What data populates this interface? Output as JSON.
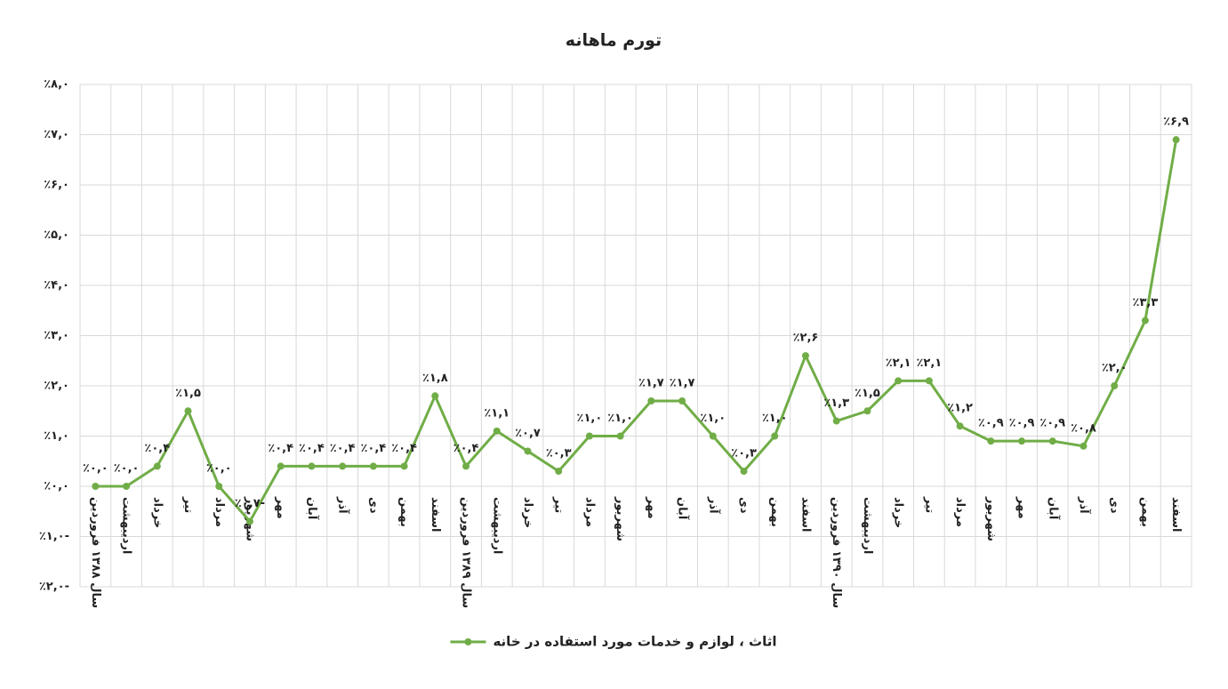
{
  "chart_data": {
    "type": "line",
    "title": "تورم ماهانه",
    "categories": [
      "سال ۱۳۸۸ فروردین",
      "اردیبهشت",
      "خرداد",
      "تیر",
      "مرداد",
      "شهریور",
      "مهر",
      "آبان",
      "آذر",
      "دی",
      "بهمن",
      "اسفند",
      "سال ۱۳۸۹ فروردین",
      "اردیبهشت",
      "خرداد",
      "تیر",
      "مرداد",
      "شهریور",
      "مهر",
      "آبان",
      "آذر",
      "دی",
      "بهمن",
      "اسفند",
      "سال ۱۳۹۰ فروردین",
      "اردیبهشت",
      "خرداد",
      "تیر",
      "مرداد",
      "شهریور",
      "مهر",
      "آبان",
      "آذر",
      "دی",
      "بهمن",
      "اسفند"
    ],
    "series": [
      {
        "name": "اثاث ، لوازم و خدمات مورد استفاده در خانه",
        "color": "#70ad47",
        "values": [
          0.0,
          0.0,
          0.4,
          1.5,
          0.0,
          -0.7,
          0.4,
          0.4,
          0.4,
          0.4,
          0.4,
          1.8,
          0.4,
          1.1,
          0.7,
          0.3,
          1.0,
          1.0,
          1.7,
          1.7,
          1.0,
          0.3,
          1.0,
          2.6,
          1.3,
          1.5,
          2.1,
          2.1,
          1.2,
          0.9,
          0.9,
          0.9,
          0.8,
          2.0,
          3.3,
          6.9
        ],
        "value_labels": [
          "٪۰,۰",
          "٪۰,۰",
          "٪۰,۴",
          "٪۱,۵",
          "٪۰,۰",
          "٪۰,۷-",
          "٪۰,۴",
          "٪۰,۴",
          "٪۰,۴",
          "٪۰,۴",
          "٪۰,۴",
          "٪۱,۸",
          "٪۰,۴",
          "٪۱,۱",
          "٪۰,۷",
          "٪۰,۳",
          "٪۱,۰",
          "٪۱,۰",
          "٪۱,۷",
          "٪۱,۷",
          "٪۱,۰",
          "٪۰,۳",
          "٪۱,۰",
          "٪۲,۶",
          "٪۱,۳",
          "٪۱,۵",
          "٪۲,۱",
          "٪۲,۱",
          "٪۱,۲",
          "٪۰,۹",
          "٪۰,۹",
          "٪۰,۹",
          "٪۰,۸",
          "٪۲,۰",
          "٪۳,۳",
          "٪۶,۹"
        ]
      }
    ],
    "ylim": [
      -2,
      8
    ],
    "yticks": [
      {
        "value": -2,
        "label": "٪۲,۰-"
      },
      {
        "value": -1,
        "label": "٪۱,۰-"
      },
      {
        "value": 0,
        "label": "٪۰,۰"
      },
      {
        "value": 1,
        "label": "٪۱,۰"
      },
      {
        "value": 2,
        "label": "٪۲,۰"
      },
      {
        "value": 3,
        "label": "٪۳,۰"
      },
      {
        "value": 4,
        "label": "٪۴,۰"
      },
      {
        "value": 5,
        "label": "٪۵,۰"
      },
      {
        "value": 6,
        "label": "٪۶,۰"
      },
      {
        "value": 7,
        "label": "٪۷,۰"
      },
      {
        "value": 8,
        "label": "٪۸,۰"
      }
    ],
    "grid": true,
    "legend": "bottom"
  }
}
